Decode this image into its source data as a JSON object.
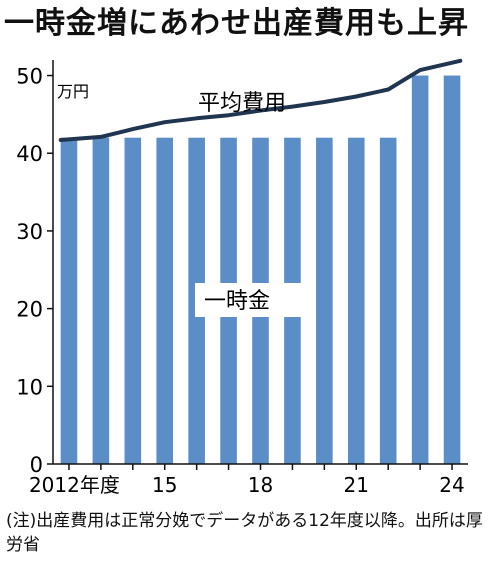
{
  "title": "一時金増にあわせ出産費用も上昇",
  "note": "(注)出産費用は正常分娩でデータがある12年度以降。出所は厚労省",
  "colors": {
    "bar": "#5b8ec6",
    "line": "#1f3550",
    "axis": "#111111"
  },
  "chart_data": {
    "type": "bar",
    "unit": "万円",
    "categories": [
      "2012",
      "2013",
      "2014",
      "2015",
      "2016",
      "2017",
      "2018",
      "2019",
      "2020",
      "2021",
      "2022",
      "2023",
      "2024"
    ],
    "x_tick_labels": [
      {
        "category": "2012",
        "label": "2012年度"
      },
      {
        "category": "2015",
        "label": "15"
      },
      {
        "category": "2018",
        "label": "18"
      },
      {
        "category": "2021",
        "label": "21"
      },
      {
        "category": "2024",
        "label": "24"
      }
    ],
    "ylim": [
      0,
      52
    ],
    "yticks": [
      0,
      10,
      20,
      30,
      40,
      50
    ],
    "grid": false,
    "series": [
      {
        "name": "一時金",
        "type": "bar",
        "values": [
          42,
          42,
          42,
          42,
          42,
          42,
          42,
          42,
          42,
          42,
          42,
          50,
          50
        ]
      },
      {
        "name": "平均費用",
        "type": "line",
        "values": [
          41.7,
          42.1,
          43.1,
          44.0,
          44.5,
          44.9,
          45.5,
          46.0,
          46.6,
          47.3,
          48.2,
          50.7,
          51.9
        ]
      }
    ]
  }
}
